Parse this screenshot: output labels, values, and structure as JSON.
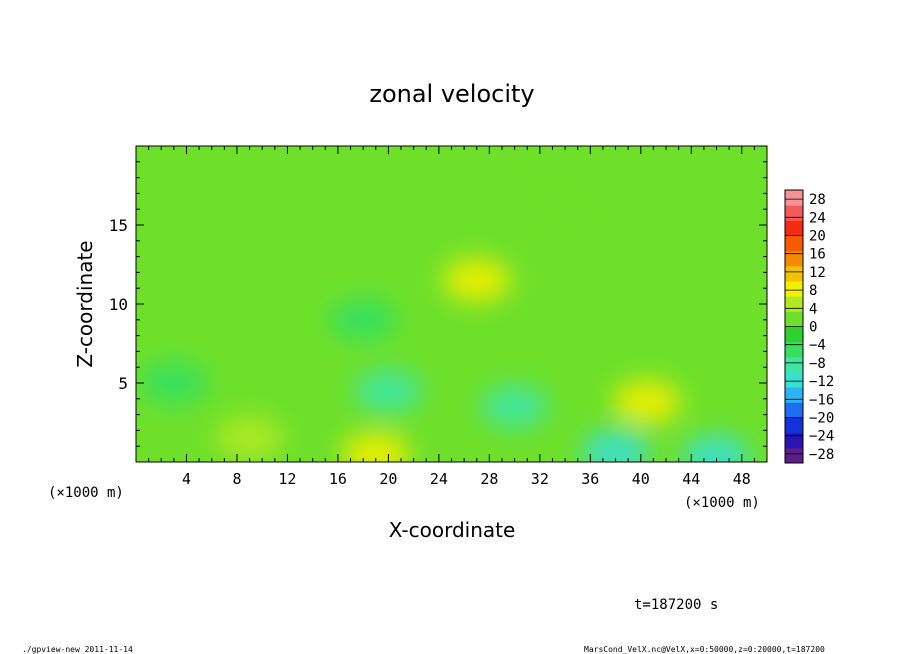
{
  "chart_data": {
    "type": "heatmap",
    "title": "zonal velocity",
    "xlabel": "X-coordinate",
    "ylabel": "Z-coordinate",
    "x_unit": "(×1000 m)",
    "y_unit": "(×1000 m)",
    "xlim": [
      0,
      50
    ],
    "ylim": [
      0,
      20
    ],
    "x_ticks": [
      "4",
      "8",
      "12",
      "16",
      "20",
      "24",
      "28",
      "32",
      "36",
      "40",
      "44",
      "48"
    ],
    "y_ticks": [
      "5",
      "10",
      "15"
    ],
    "colorbar_ticks": [
      "28",
      "24",
      "20",
      "16",
      "12",
      "8",
      "4",
      "0",
      "−4",
      "−8",
      "−12",
      "−16",
      "−20",
      "−24",
      "−28"
    ],
    "colorbar_range": [
      -30,
      30
    ],
    "grid": false,
    "legend_placement": "right",
    "colormap": [
      "#5a1f8a",
      "#2a14b4",
      "#1432dc",
      "#1e6ef0",
      "#2ab4f4",
      "#38e0d0",
      "#3ee6a2",
      "#34e060",
      "#2ed030",
      "#6ee02a",
      "#b0ea22",
      "#f0f000",
      "#f4c000",
      "#f48a00",
      "#f45a00",
      "#f42a14",
      "#f45a5a",
      "#f49494"
    ],
    "features": [
      {
        "x": 27,
        "z": 11.5,
        "value": 7
      },
      {
        "x": 40.5,
        "z": 3.8,
        "value": 9
      },
      {
        "x": 19,
        "z": 0.5,
        "value": 7
      },
      {
        "x": 9,
        "z": 1.5,
        "value": 4
      },
      {
        "x": 30,
        "z": 3.5,
        "value": -10
      },
      {
        "x": 20,
        "z": 4.5,
        "value": -8
      },
      {
        "x": 18,
        "z": 9,
        "value": -6
      },
      {
        "x": 38,
        "z": 0.6,
        "value": -12
      },
      {
        "x": 46,
        "z": 0.3,
        "value": -13
      },
      {
        "x": 3,
        "z": 5,
        "value": -5
      },
      {
        "x": 33,
        "z": 17,
        "value": 3
      }
    ],
    "time_label": "t=187200 s"
  },
  "footer": {
    "left": "./gpview-new 2011-11-14",
    "right": "MarsCond_VelX.nc@VelX,x=0:50000,z=0:20000,t=187200"
  }
}
